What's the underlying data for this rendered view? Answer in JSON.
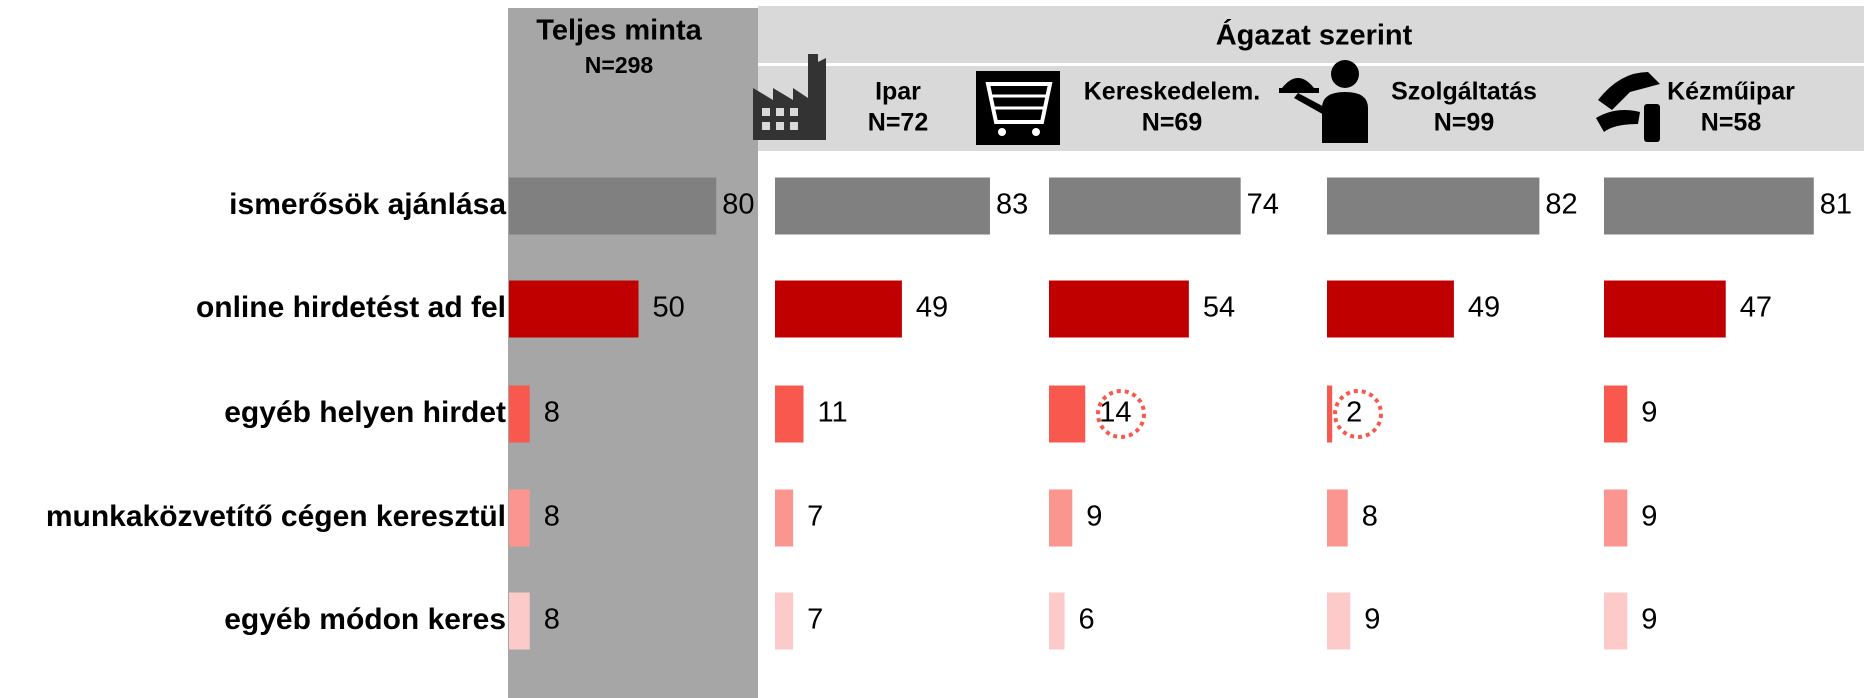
{
  "chart_data": {
    "type": "bar",
    "header": "Ágazat szerint",
    "categories": [
      "ismerősök ajánlása",
      "online hirdetést ad fel",
      "egyéb helyen hirdet",
      "munkaközvetítő cégen keresztül",
      "egyéb módon keres"
    ],
    "colors": [
      "#808080",
      "#c00000",
      "#f8584e",
      "#fa9590",
      "#fdcaca"
    ],
    "series": [
      {
        "name": "Teljes minta",
        "n": "N=298",
        "values": [
          80,
          50,
          8,
          8,
          8
        ]
      },
      {
        "name": "Ipar",
        "n": "N=72",
        "values": [
          83,
          49,
          11,
          7,
          7
        ]
      },
      {
        "name": "Kereskedelem.",
        "n": "N=69",
        "values": [
          74,
          54,
          14,
          9,
          6
        ]
      },
      {
        "name": "Szolgáltatás",
        "n": "N=99",
        "values": [
          82,
          49,
          2,
          8,
          9
        ]
      },
      {
        "name": "Kézműipar",
        "n": "N=58",
        "values": [
          81,
          47,
          9,
          9,
          9
        ]
      }
    ]
  }
}
